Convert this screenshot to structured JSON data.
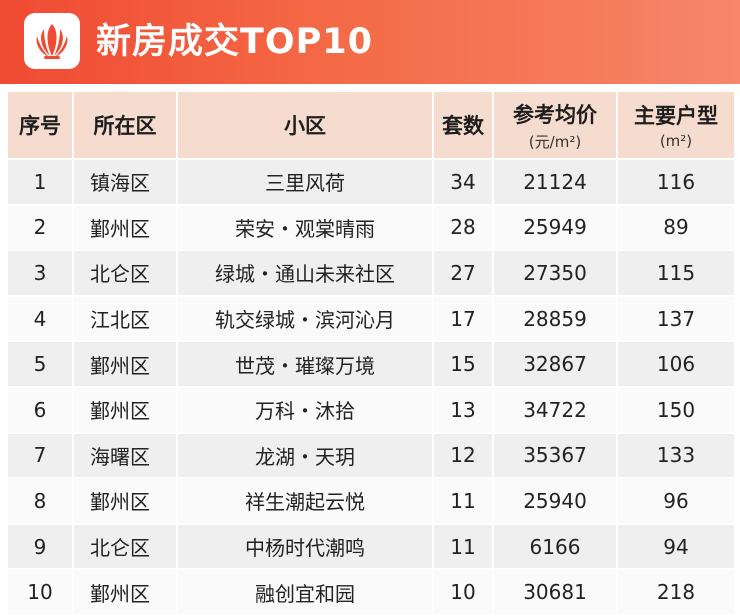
{
  "header": {
    "title": "新房成交TOP10",
    "gradient_start": "#f04a33",
    "gradient_end": "#f7866a",
    "logo_icon": "lotus-logo-icon"
  },
  "table": {
    "columns": {
      "rank": "序号",
      "district": "所在区",
      "community": "小区",
      "units": "套数",
      "price": "参考均价",
      "price_unit": "(元/m²)",
      "type": "主要户型",
      "type_unit": "(m²)"
    },
    "rows": [
      {
        "rank": "1",
        "district": "镇海区",
        "community": "三里风荷",
        "units": "34",
        "price": "21124",
        "type": "116"
      },
      {
        "rank": "2",
        "district": "鄞州区",
        "community": "荣安・观棠晴雨",
        "units": "28",
        "price": "25949",
        "type": "89"
      },
      {
        "rank": "3",
        "district": "北仑区",
        "community": "绿城・通山未来社区",
        "units": "27",
        "price": "27350",
        "type": "115"
      },
      {
        "rank": "4",
        "district": "江北区",
        "community": "轨交绿城・滨河沁月",
        "units": "17",
        "price": "28859",
        "type": "137"
      },
      {
        "rank": "5",
        "district": "鄞州区",
        "community": "世茂・璀璨万境",
        "units": "15",
        "price": "32867",
        "type": "106"
      },
      {
        "rank": "6",
        "district": "鄞州区",
        "community": "万科・沐拾",
        "units": "13",
        "price": "34722",
        "type": "150"
      },
      {
        "rank": "7",
        "district": "海曙区",
        "community": "龙湖・天玥",
        "units": "12",
        "price": "35367",
        "type": "133"
      },
      {
        "rank": "8",
        "district": "鄞州区",
        "community": "祥生潮起云悦",
        "units": "11",
        "price": "25940",
        "type": "96"
      },
      {
        "rank": "9",
        "district": "北仑区",
        "community": "中杨时代潮鸣",
        "units": "11",
        "price": "6166",
        "type": "94"
      },
      {
        "rank": "10",
        "district": "鄞州区",
        "community": "融创宜和园",
        "units": "10",
        "price": "30681",
        "type": "218"
      }
    ]
  }
}
